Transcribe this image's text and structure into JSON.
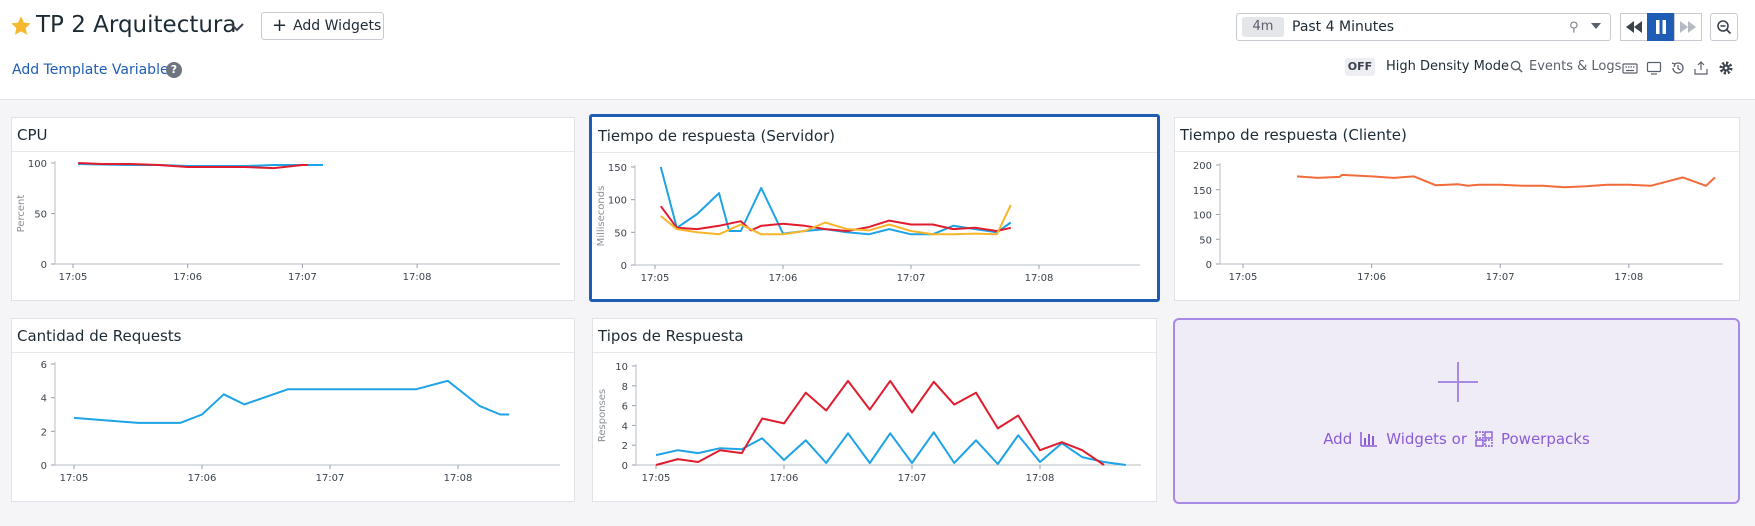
{
  "header": {
    "title": "TP 2 Arquitectura",
    "add_widgets_label": "Add Widgets",
    "template_variables_label": "Add Template Variables",
    "help_symbol": "?"
  },
  "timepicker": {
    "badge": "4m",
    "label": "Past 4 Minutes"
  },
  "toolbar": {
    "hdm_state": "OFF",
    "hdm_label": "High Density Mode",
    "events_label": "Events & Logs",
    "icons": [
      "keyboard-icon",
      "tv-mode-icon",
      "history-icon",
      "export-icon",
      "settings-icon"
    ]
  },
  "colors": {
    "accent": "#1f5db5",
    "blue": "#1da3e6",
    "red": "#e01d2e",
    "yellow": "#f7b52c",
    "orange": "#f26b3a",
    "purple": "#8a5cd6"
  },
  "widgets": [
    {
      "title": "CPU",
      "chart_data": {
        "type": "line",
        "ylabel": "Percent",
        "ylim": [
          0,
          100
        ],
        "yticks": [
          0,
          50,
          100
        ],
        "xticks": [
          "17:05",
          "17:06",
          "17:07",
          "17:08"
        ],
        "series": [
          {
            "color": "#1da3e6",
            "values": [
              [
                17.045,
                99
              ],
              [
                17.5,
                98
              ],
              [
                17.75,
                98
              ],
              [
                18.0,
                97
              ],
              [
                18.25,
                97
              ],
              [
                18.5,
                97
              ],
              [
                18.75,
                98
              ],
              [
                19.0,
                98
              ],
              [
                19.18,
                98
              ]
            ]
          },
          {
            "color": "#e01d2e",
            "values": [
              [
                17.045,
                100
              ],
              [
                17.25,
                99
              ],
              [
                17.5,
                99
              ],
              [
                17.75,
                98
              ],
              [
                18.0,
                96
              ],
              [
                18.25,
                96
              ],
              [
                18.5,
                96
              ],
              [
                18.75,
                95
              ],
              [
                19.0,
                98
              ],
              [
                19.05,
                98
              ]
            ]
          }
        ]
      }
    },
    {
      "title": "Tiempo de respuesta (Servidor)",
      "selected": true,
      "chart_data": {
        "type": "line",
        "ylabel": "Milliseconds",
        "ylim": [
          0,
          150
        ],
        "yticks": [
          0,
          50,
          100,
          150
        ],
        "xticks": [
          "17:05",
          "17:06",
          "17:07",
          "17:08"
        ],
        "series": [
          {
            "color": "#1da3e6",
            "values": [
              [
                17.045,
                150
              ],
              [
                17.17,
                57
              ],
              [
                17.33,
                78
              ],
              [
                17.5,
                110
              ],
              [
                17.58,
                52
              ],
              [
                17.67,
                52
              ],
              [
                17.83,
                118
              ],
              [
                18.0,
                48
              ],
              [
                18.17,
                52
              ],
              [
                18.33,
                55
              ],
              [
                18.5,
                50
              ],
              [
                18.67,
                47
              ],
              [
                18.83,
                55
              ],
              [
                19.0,
                47
              ],
              [
                19.17,
                47
              ],
              [
                19.33,
                60
              ],
              [
                19.5,
                55
              ],
              [
                19.67,
                50
              ],
              [
                19.78,
                65
              ]
            ]
          },
          {
            "color": "#e01d2e",
            "values": [
              [
                17.045,
                90
              ],
              [
                17.17,
                57
              ],
              [
                17.33,
                55
              ],
              [
                17.5,
                60
              ],
              [
                17.67,
                67
              ],
              [
                17.75,
                53
              ],
              [
                17.83,
                60
              ],
              [
                18.0,
                63
              ],
              [
                18.17,
                60
              ],
              [
                18.33,
                55
              ],
              [
                18.5,
                52
              ],
              [
                18.67,
                58
              ],
              [
                18.83,
                68
              ],
              [
                19.0,
                62
              ],
              [
                19.17,
                62
              ],
              [
                19.33,
                55
              ],
              [
                19.5,
                57
              ],
              [
                19.67,
                52
              ],
              [
                19.78,
                57
              ]
            ]
          },
          {
            "color": "#f7b52c",
            "values": [
              [
                17.045,
                75
              ],
              [
                17.17,
                55
              ],
              [
                17.33,
                50
              ],
              [
                17.5,
                47
              ],
              [
                17.67,
                62
              ],
              [
                17.83,
                47
              ],
              [
                18.0,
                47
              ],
              [
                18.17,
                52
              ],
              [
                18.33,
                65
              ],
              [
                18.5,
                55
              ],
              [
                18.67,
                53
              ],
              [
                18.83,
                62
              ],
              [
                19.0,
                52
              ],
              [
                19.17,
                47
              ],
              [
                19.33,
                47
              ],
              [
                19.5,
                48
              ],
              [
                19.67,
                47
              ],
              [
                19.78,
                92
              ]
            ]
          }
        ]
      }
    },
    {
      "title": "Tiempo de respuesta (Cliente)",
      "chart_data": {
        "type": "line",
        "ylim": [
          0,
          200
        ],
        "yticks": [
          0,
          50,
          100,
          150,
          200
        ],
        "xticks": [
          "17:05",
          "17:06",
          "17:07",
          "17:08"
        ],
        "series": [
          {
            "color": "#f26b3a",
            "values": [
              [
                17.42,
                177
              ],
              [
                17.58,
                174
              ],
              [
                17.75,
                176
              ],
              [
                17.77,
                180
              ],
              [
                18.0,
                177
              ],
              [
                18.17,
                174
              ],
              [
                18.33,
                177
              ],
              [
                18.5,
                159
              ],
              [
                18.67,
                161
              ],
              [
                18.75,
                158
              ],
              [
                18.83,
                160
              ],
              [
                19.0,
                160
              ],
              [
                19.17,
                158
              ],
              [
                19.33,
                158
              ],
              [
                19.5,
                155
              ],
              [
                19.67,
                157
              ],
              [
                19.83,
                160
              ],
              [
                20.0,
                160
              ],
              [
                20.17,
                158
              ],
              [
                20.42,
                175
              ],
              [
                20.6,
                158
              ],
              [
                20.67,
                175
              ]
            ]
          }
        ]
      }
    },
    {
      "title": "Cantidad de Requests",
      "chart_data": {
        "type": "line",
        "ylim": [
          0,
          6
        ],
        "yticks": [
          0,
          2,
          4,
          6
        ],
        "xticks": [
          "17:05",
          "17:06",
          "17:07",
          "17:08"
        ],
        "series": [
          {
            "color": "#1da3e6",
            "values": [
              [
                17.0,
                2.8
              ],
              [
                17.5,
                2.5
              ],
              [
                17.83,
                2.5
              ],
              [
                18.0,
                3.0
              ],
              [
                18.17,
                4.2
              ],
              [
                18.33,
                3.6
              ],
              [
                18.67,
                4.5
              ],
              [
                19.0,
                4.5
              ],
              [
                19.33,
                4.5
              ],
              [
                19.67,
                4.5
              ],
              [
                19.92,
                5.0
              ],
              [
                20.17,
                3.5
              ],
              [
                20.33,
                3.0
              ],
              [
                20.4,
                3.0
              ]
            ]
          }
        ]
      }
    },
    {
      "title": "Tipos de Respuesta",
      "chart_data": {
        "type": "line",
        "ylabel": "Responses",
        "ylim": [
          0,
          10
        ],
        "yticks": [
          0,
          2,
          4,
          6,
          8,
          10
        ],
        "xticks": [
          "17:05",
          "17:06",
          "17:07",
          "17:08"
        ],
        "series": [
          {
            "color": "#1da3e6",
            "values": [
              [
                17.0,
                1.0
              ],
              [
                17.17,
                1.5
              ],
              [
                17.33,
                1.2
              ],
              [
                17.5,
                1.7
              ],
              [
                17.67,
                1.6
              ],
              [
                17.83,
                2.7
              ],
              [
                18.0,
                0.5
              ],
              [
                18.17,
                2.5
              ],
              [
                18.33,
                0.2
              ],
              [
                18.5,
                3.2
              ],
              [
                18.67,
                0.2
              ],
              [
                18.83,
                3.2
              ],
              [
                19.0,
                0.2
              ],
              [
                19.17,
                3.3
              ],
              [
                19.33,
                0.2
              ],
              [
                19.5,
                2.5
              ],
              [
                19.67,
                0.1
              ],
              [
                19.83,
                3.0
              ],
              [
                20.0,
                0.3
              ],
              [
                20.17,
                2.2
              ],
              [
                20.33,
                0.8
              ],
              [
                20.5,
                0.3
              ],
              [
                20.67,
                0.0
              ]
            ]
          },
          {
            "color": "#e01d2e",
            "values": [
              [
                17.0,
                0.0
              ],
              [
                17.17,
                0.6
              ],
              [
                17.33,
                0.3
              ],
              [
                17.5,
                1.5
              ],
              [
                17.67,
                1.2
              ],
              [
                17.83,
                4.7
              ],
              [
                18.0,
                4.2
              ],
              [
                18.17,
                7.3
              ],
              [
                18.33,
                5.5
              ],
              [
                18.5,
                8.5
              ],
              [
                18.67,
                5.6
              ],
              [
                18.83,
                8.5
              ],
              [
                19.0,
                5.3
              ],
              [
                19.17,
                8.4
              ],
              [
                19.33,
                6.1
              ],
              [
                19.5,
                7.3
              ],
              [
                19.67,
                3.7
              ],
              [
                19.83,
                5.0
              ],
              [
                20.0,
                1.5
              ],
              [
                20.17,
                2.3
              ],
              [
                20.33,
                1.5
              ],
              [
                20.5,
                0.0
              ]
            ]
          }
        ]
      }
    }
  ],
  "add_tile": {
    "prefix": "Add",
    "widgets_text": "Widgets or",
    "powerpacks_text": "Powerpacks"
  }
}
